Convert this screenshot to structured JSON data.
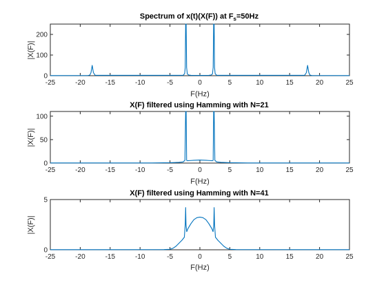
{
  "figure": {
    "background": "#ffffff",
    "axis_color": "#262626",
    "line_color": "#0072BD"
  },
  "chart_data": [
    {
      "type": "line",
      "title_main": "Spectrum of x(t)(X(F)) at F",
      "title_sub": "s",
      "title_tail": "=50Hz",
      "xlabel": "F(Hz)",
      "ylabel": "|X(F)|",
      "xlim": [
        -25,
        25
      ],
      "ylim": [
        0,
        250
      ],
      "xticks": [
        -25,
        -20,
        -15,
        -10,
        -5,
        0,
        5,
        10,
        15,
        20,
        25
      ],
      "yticks": [
        0,
        100,
        200
      ],
      "grid": false,
      "series": [
        {
          "x": [
            -25,
            -18.7,
            -18.4,
            -18.2,
            -18.0,
            -17.8,
            -17.5,
            -2.8,
            -2.55,
            -2.45,
            -2.38,
            -2.3,
            -2.22,
            -2.1,
            -1.85,
            -1.5,
            0,
            1.5,
            1.85,
            2.1,
            2.22,
            2.3,
            2.38,
            2.45,
            2.55,
            2.8,
            17.5,
            17.8,
            18.0,
            18.2,
            18.4,
            18.7,
            25
          ],
          "y": [
            0.5,
            1,
            3,
            15,
            50,
            15,
            2,
            2,
            10,
            40,
            250,
            250,
            40,
            8,
            3,
            2,
            1.5,
            2,
            3,
            8,
            40,
            250,
            250,
            40,
            10,
            2,
            2,
            15,
            50,
            15,
            3,
            1,
            0.5
          ]
        }
      ]
    },
    {
      "type": "line",
      "title_main": "X(F) filtered using Hamming with N=21",
      "xlabel": "F(Hz)",
      "ylabel": "|X(F)|",
      "xlim": [
        -25,
        25
      ],
      "ylim": [
        0,
        110
      ],
      "xticks": [
        -25,
        -20,
        -15,
        -10,
        -5,
        0,
        5,
        10,
        15,
        20,
        25
      ],
      "yticks": [
        0,
        50,
        100
      ],
      "grid": false,
      "series": [
        {
          "x": [
            -25,
            -8,
            -5,
            -3.5,
            -2.8,
            -2.5,
            -2.38,
            -2.3,
            -2.22,
            -2.1,
            -1.5,
            -1,
            0,
            1,
            1.5,
            2.1,
            2.22,
            2.3,
            2.38,
            2.5,
            2.8,
            3.5,
            5,
            8,
            25
          ],
          "y": [
            0.2,
            0.3,
            0.8,
            1.5,
            2.5,
            6,
            110,
            110,
            6,
            5,
            5.5,
            6,
            6.5,
            6,
            5.5,
            5,
            6,
            110,
            110,
            6,
            2.5,
            1.5,
            0.8,
            0.3,
            0.2
          ]
        }
      ]
    },
    {
      "type": "line",
      "title_main": "X(F) filtered using Hamming with N=41",
      "xlabel": "F(Hz)",
      "ylabel": "|X(F)|",
      "xlim": [
        -25,
        25
      ],
      "ylim": [
        0,
        5
      ],
      "xticks": [
        -25,
        -20,
        -15,
        -10,
        -5,
        0,
        5,
        10,
        15,
        20,
        25
      ],
      "yticks": [
        0,
        5
      ],
      "grid": false,
      "series": [
        {
          "x": [
            -25,
            -6,
            -5,
            -4.5,
            -4,
            -3.5,
            -3,
            -2.6,
            -2.45,
            -2.38,
            -2.32,
            -2.2,
            -2,
            -1.5,
            -1,
            -0.5,
            0,
            0.5,
            1,
            1.5,
            2,
            2.2,
            2.32,
            2.38,
            2.45,
            2.6,
            3,
            3.5,
            4,
            4.5,
            5,
            6,
            25
          ],
          "y": [
            0.01,
            0.02,
            0.05,
            0.15,
            0.35,
            0.65,
            0.95,
            1.25,
            2.5,
            4.2,
            2.5,
            1.8,
            2.1,
            2.6,
            3.0,
            3.2,
            3.25,
            3.2,
            3.0,
            2.6,
            2.1,
            1.8,
            2.5,
            4.2,
            2.5,
            1.25,
            0.95,
            0.65,
            0.35,
            0.15,
            0.05,
            0.02,
            0.01
          ]
        }
      ]
    }
  ]
}
